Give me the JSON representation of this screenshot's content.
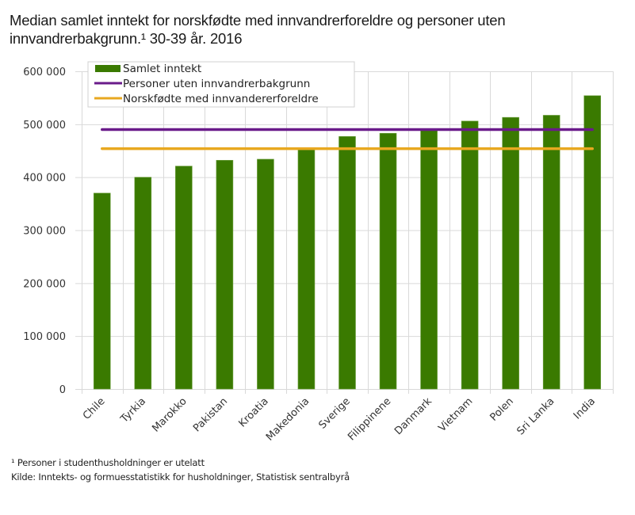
{
  "title": "Median samlet inntekt for norskfødte med innvandrerforeldre og personer uten innvandrerbakgrunn.¹ 30-39 år. 2016",
  "footnotes": [
    "¹ Personer i studenthusholdninger  er utelatt",
    "Kilde: Inntekts- og formuesstatistikk for husholdninger,  Statistisk sentralbyrå"
  ],
  "colors": {
    "bar": "#3a7a00",
    "line_personer": "#6a1b8a",
    "line_norskfodte": "#e8a820",
    "grid": "#d9d9d9"
  },
  "chart_data": {
    "type": "bar",
    "title": "Median samlet inntekt for norskfødte med innvandrerforeldre og personer uten innvandrerbakgrunn.¹ 30-39 år. 2016",
    "xlabel": "",
    "ylabel": "",
    "ylim": [
      0,
      600000
    ],
    "yticks": [
      0,
      100000,
      200000,
      300000,
      400000,
      500000,
      600000
    ],
    "ytick_labels": [
      "0",
      "100 000",
      "200 000",
      "300 000",
      "400 000",
      "500 000",
      "600 000"
    ],
    "grid": true,
    "legend_position": "top-left",
    "categories": [
      "Chile",
      "Tyrkia",
      "Marokko",
      "Pakistan",
      "Kroatia",
      "Makedonia",
      "Sverige",
      "Filippinene",
      "Danmark",
      "Vietnam",
      "Polen",
      "Sri Lanka",
      "India"
    ],
    "series": [
      {
        "name": "Samlet inntekt",
        "type": "bar",
        "values": [
          370000,
          400000,
          421000,
          432000,
          434000,
          452000,
          477000,
          483000,
          490000,
          506000,
          513000,
          517000,
          554000
        ]
      },
      {
        "name": "Personer uten innvandrerbakgrunn",
        "type": "line",
        "value": 490000
      },
      {
        "name": "Norskfødte med innvandererforeldre",
        "type": "line",
        "value": 454000
      }
    ]
  }
}
